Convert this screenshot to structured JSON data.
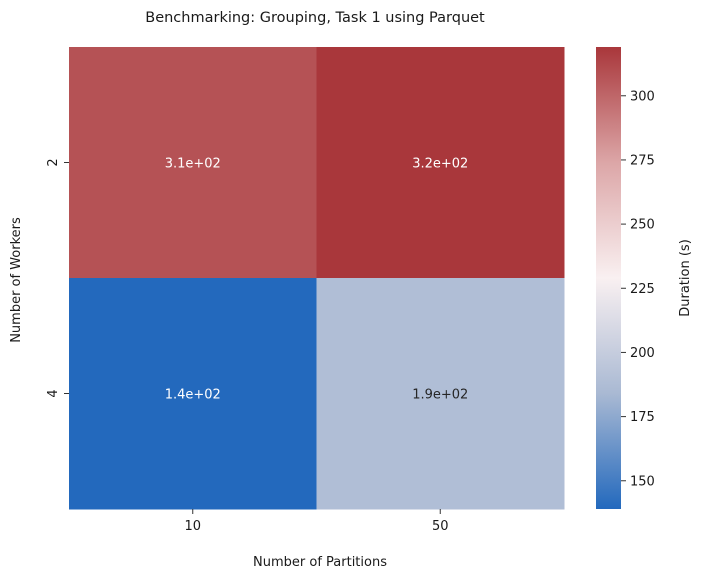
{
  "chart_data": {
    "type": "heatmap",
    "title": "Benchmarking: Grouping, Task 1 using Parquet",
    "xlabel": "Number of Partitions",
    "ylabel": "Number of Workers",
    "x_categories": [
      "10",
      "50"
    ],
    "y_categories": [
      "2",
      "4"
    ],
    "values": [
      [
        308,
        319
      ],
      [
        139,
        188
      ]
    ],
    "annotations": [
      [
        "3.1e+02",
        "3.2e+02"
      ],
      [
        "1.4e+02",
        "1.9e+02"
      ]
    ],
    "colorbar": {
      "label": "Duration (s)",
      "range": [
        139,
        319
      ],
      "ticks": [
        150,
        175,
        200,
        225,
        250,
        275,
        300
      ],
      "tick_labels": [
        "150",
        "175",
        "200",
        "225",
        "250",
        "275",
        "300"
      ],
      "colormap": "vlag",
      "colors": [
        "#2369bd",
        "#a9b9d3",
        "#f9f0f1",
        "#dca6a7",
        "#a9373b"
      ]
    },
    "grid": false
  }
}
